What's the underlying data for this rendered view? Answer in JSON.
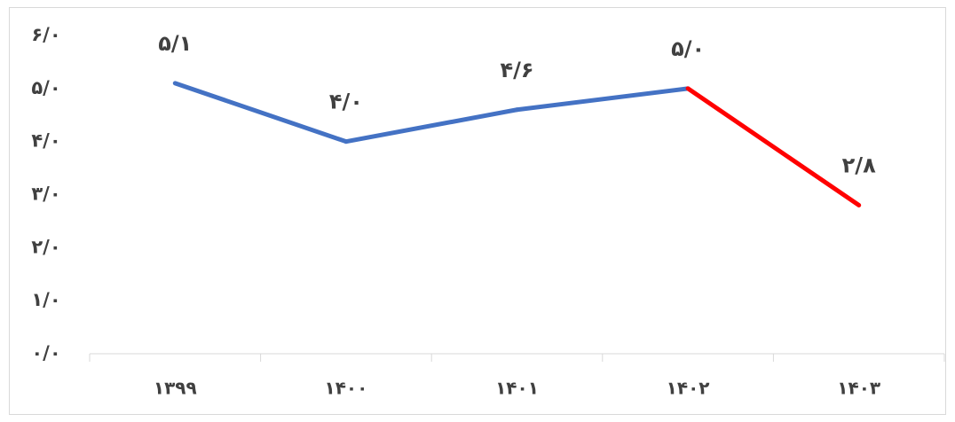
{
  "chart_data": {
    "type": "line",
    "title": "",
    "xlabel": "",
    "ylabel": "",
    "ylim": [
      0,
      6
    ],
    "y_ticks": [
      0,
      1,
      2,
      3,
      4,
      5,
      6
    ],
    "y_tick_labels": [
      "۰/۰",
      "۱/۰",
      "۲/۰",
      "۳/۰",
      "۴/۰",
      "۵/۰",
      "۶/۰"
    ],
    "categories": [
      "۱۳۹۹",
      "۱۴۰۰",
      "۱۴۰۱",
      "۱۴۰۲",
      "۱۴۰۳"
    ],
    "values": [
      5.1,
      4.0,
      4.6,
      5.0,
      2.8
    ],
    "data_labels": [
      "۵/۱",
      "۴/۰",
      "۴/۶",
      "۵/۰",
      "۲/۸"
    ],
    "segment_colors": [
      "#4472c4",
      "#4472c4",
      "#4472c4",
      "#ff0000"
    ],
    "grid": false,
    "legend": "none"
  }
}
